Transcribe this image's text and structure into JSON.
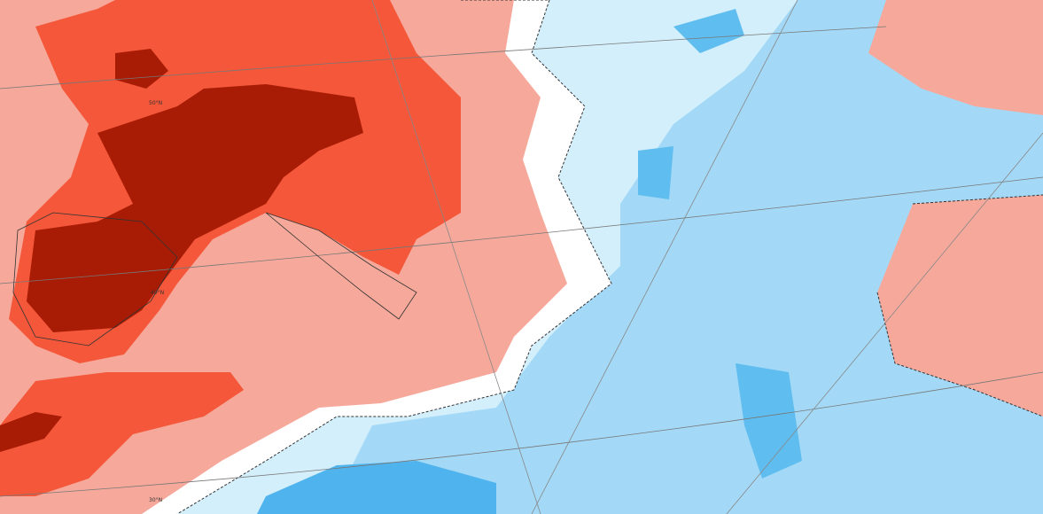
{
  "latitude_labels": [
    "50°N",
    "40°N",
    "30°N"
  ]
}
